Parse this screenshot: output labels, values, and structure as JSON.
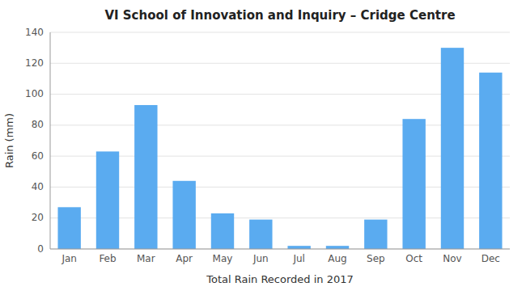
{
  "chart_data": {
    "type": "bar",
    "title": "VI School of Innovation and Inquiry – Cridge Centre",
    "xlabel": "Total Rain Recorded in 2017",
    "ylabel": "Rain (mm)",
    "categories": [
      "Jan",
      "Feb",
      "Mar",
      "Apr",
      "May",
      "Jun",
      "Jul",
      "Aug",
      "Sep",
      "Oct",
      "Nov",
      "Dec"
    ],
    "values": [
      27,
      63,
      93,
      44,
      23,
      19,
      2,
      2,
      19,
      84,
      130,
      114
    ],
    "color": "#5aabf0",
    "ylim": [
      0,
      140
    ],
    "yticks": [
      0,
      20,
      40,
      60,
      80,
      100,
      120,
      140
    ],
    "grid": true
  }
}
